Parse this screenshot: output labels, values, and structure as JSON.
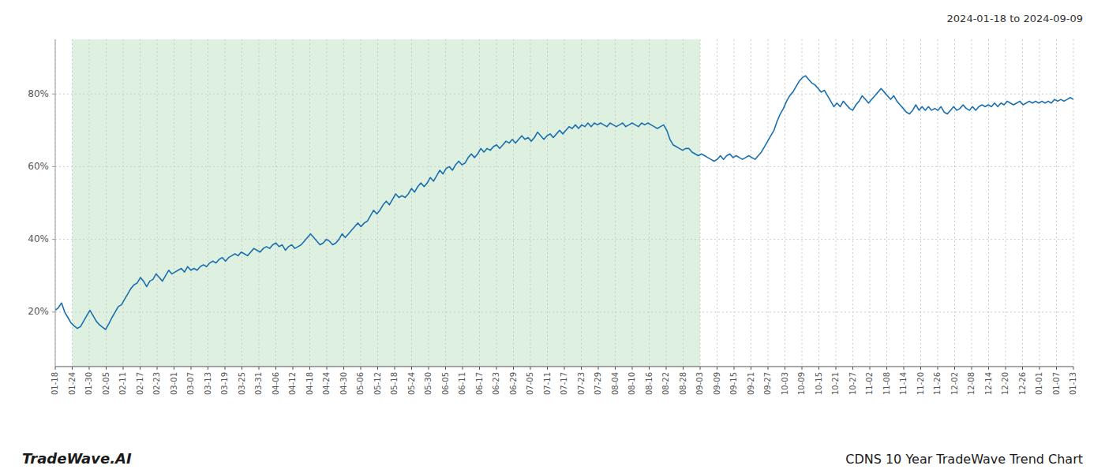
{
  "chart_data": {
    "type": "line",
    "title": "CDNS 10 Year TradeWave Trend Chart",
    "subtitle": "2024-01-18 to 2024-09-09",
    "annotations": [
      {
        "text": "TradeWave.AI"
      }
    ],
    "color": "#1a6faf",
    "grid": true,
    "xlim": [
      0,
      323
    ],
    "xticks": [
      {
        "value": 0,
        "label": "01-18"
      },
      {
        "value": 5.383333333333334,
        "label": "01-24"
      },
      {
        "value": 10.766666666666667,
        "label": "01-30"
      },
      {
        "value": 16.15,
        "label": "02-05"
      },
      {
        "value": 21.533333333333335,
        "label": "02-11"
      },
      {
        "value": 26.916666666666668,
        "label": "02-17"
      },
      {
        "value": 32.3,
        "label": "02-23"
      },
      {
        "value": 37.68333333333333,
        "label": "03-01"
      },
      {
        "value": 43.06666666666667,
        "label": "03-07"
      },
      {
        "value": 48.45,
        "label": "03-13"
      },
      {
        "value": 53.833333333333336,
        "label": "03-19"
      },
      {
        "value": 59.21666666666667,
        "label": "03-25"
      },
      {
        "value": 64.6,
        "label": "03-31"
      },
      {
        "value": 69.98333333333333,
        "label": "04-06"
      },
      {
        "value": 75.36666666666667,
        "label": "04-12"
      },
      {
        "value": 80.75,
        "label": "04-18"
      },
      {
        "value": 86.13333333333334,
        "label": "04-24"
      },
      {
        "value": 91.51666666666667,
        "label": "04-30"
      },
      {
        "value": 96.9,
        "label": "05-06"
      },
      {
        "value": 102.28333333333333,
        "label": "05-12"
      },
      {
        "value": 107.66666666666667,
        "label": "05-18"
      },
      {
        "value": 113.05,
        "label": "05-24"
      },
      {
        "value": 118.43333333333334,
        "label": "05-30"
      },
      {
        "value": 123.81666666666666,
        "label": "06-05"
      },
      {
        "value": 129.2,
        "label": "06-11"
      },
      {
        "value": 134.58333333333334,
        "label": "06-17"
      },
      {
        "value": 139.96666666666667,
        "label": "06-23"
      },
      {
        "value": 145.35,
        "label": "06-29"
      },
      {
        "value": 150.73333333333332,
        "label": "07-05"
      },
      {
        "value": 156.11666666666667,
        "label": "07-11"
      },
      {
        "value": 161.5,
        "label": "07-17"
      },
      {
        "value": 166.88333333333333,
        "label": "07-23"
      },
      {
        "value": 172.26666666666668,
        "label": "07-29"
      },
      {
        "value": 177.65,
        "label": "08-04"
      },
      {
        "value": 183.03333333333333,
        "label": "08-10"
      },
      {
        "value": 188.41666666666666,
        "label": "08-16"
      },
      {
        "value": 193.8,
        "label": "08-22"
      },
      {
        "value": 199.18333333333334,
        "label": "08-28"
      },
      {
        "value": 204.56666666666666,
        "label": "09-03"
      },
      {
        "value": 209.95,
        "label": "09-09"
      },
      {
        "value": 215.33333333333334,
        "label": "09-15"
      },
      {
        "value": 220.71666666666667,
        "label": "09-21"
      },
      {
        "value": 226.1,
        "label": "09-27"
      },
      {
        "value": 231.48333333333332,
        "label": "10-03"
      },
      {
        "value": 236.86666666666667,
        "label": "10-09"
      },
      {
        "value": 242.25,
        "label": "10-15"
      },
      {
        "value": 247.63333333333333,
        "label": "10-21"
      },
      {
        "value": 253.01666666666668,
        "label": "10-27"
      },
      {
        "value": 258.4,
        "label": "11-02"
      },
      {
        "value": 263.78333333333336,
        "label": "11-08"
      },
      {
        "value": 269.1666666666667,
        "label": "11-14"
      },
      {
        "value": 274.55,
        "label": "11-20"
      },
      {
        "value": 279.93333333333334,
        "label": "11-26"
      },
      {
        "value": 285.31666666666666,
        "label": "12-02"
      },
      {
        "value": 290.7,
        "label": "12-08"
      },
      {
        "value": 296.0833333333333,
        "label": "12-14"
      },
      {
        "value": 301.46666666666664,
        "label": "12-20"
      },
      {
        "value": 306.85,
        "label": "12-26"
      },
      {
        "value": 312.2333333333333,
        "label": "01-01"
      },
      {
        "value": 317.6166666666667,
        "label": "01-07"
      },
      {
        "value": 323,
        "label": "01-13"
      }
    ],
    "ylim": [
      5,
      95
    ],
    "yticks": [
      {
        "value": 20,
        "label": "20%"
      },
      {
        "value": 40,
        "label": "40%"
      },
      {
        "value": 60,
        "label": "60%"
      },
      {
        "value": 80,
        "label": "80%"
      }
    ],
    "span": {
      "start": 5.383333333333334,
      "end": 204.56666666666666,
      "color": "#c8e6c9"
    },
    "values": [
      20.5,
      21.2,
      22.5,
      20.0,
      18.5,
      17.0,
      16.2,
      15.5,
      16.0,
      17.5,
      19.0,
      20.5,
      19.0,
      17.5,
      16.5,
      15.8,
      15.2,
      16.8,
      18.5,
      20.0,
      21.5,
      22.0,
      23.5,
      25.0,
      26.5,
      27.5,
      28.0,
      29.5,
      28.5,
      27.0,
      28.5,
      29.0,
      30.5,
      29.5,
      28.5,
      30.0,
      31.5,
      30.5,
      31.0,
      31.5,
      32.0,
      31.0,
      32.5,
      31.5,
      32.0,
      31.5,
      32.5,
      33.0,
      32.5,
      33.5,
      34.0,
      33.5,
      34.5,
      35.0,
      34.0,
      35.0,
      35.5,
      36.0,
      35.5,
      36.5,
      36.0,
      35.5,
      36.5,
      37.5,
      37.0,
      36.5,
      37.5,
      38.0,
      37.5,
      38.5,
      39.0,
      38.0,
      38.5,
      37.0,
      38.0,
      38.5,
      37.5,
      38.0,
      38.5,
      39.5,
      40.5,
      41.5,
      40.5,
      39.5,
      38.5,
      39.0,
      40.0,
      39.5,
      38.5,
      39.0,
      40.0,
      41.5,
      40.5,
      41.5,
      42.5,
      43.5,
      44.5,
      43.5,
      44.5,
      45.0,
      46.5,
      48.0,
      47.0,
      48.0,
      49.5,
      50.5,
      49.5,
      51.0,
      52.5,
      51.5,
      52.0,
      51.5,
      52.5,
      54.0,
      53.0,
      54.5,
      55.5,
      54.5,
      55.5,
      57.0,
      56.0,
      57.5,
      59.0,
      58.0,
      59.5,
      60.0,
      59.0,
      60.5,
      61.5,
      60.5,
      61.0,
      62.5,
      63.5,
      62.5,
      63.5,
      65.0,
      64.0,
      65.0,
      64.5,
      65.5,
      66.0,
      65.0,
      66.0,
      67.0,
      66.5,
      67.5,
      66.5,
      67.5,
      68.5,
      67.5,
      68.0,
      67.0,
      68.0,
      69.5,
      68.5,
      67.5,
      68.5,
      69.0,
      68.0,
      69.0,
      70.0,
      69.0,
      70.0,
      71.0,
      70.5,
      71.5,
      70.5,
      71.5,
      71.0,
      72.0,
      71.0,
      72.0,
      71.5,
      72.0,
      71.5,
      71.0,
      72.0,
      71.5,
      71.0,
      71.5,
      72.0,
      71.0,
      71.5,
      72.0,
      71.5,
      71.0,
      72.0,
      71.5,
      72.0,
      71.5,
      71.0,
      70.5,
      71.0,
      71.5,
      70.0,
      67.5,
      66.0,
      65.5,
      65.0,
      64.5,
      65.0,
      65.0,
      64.0,
      63.5,
      63.0,
      63.5,
      63.0,
      62.5,
      62.0,
      61.5,
      62.0,
      63.0,
      62.0,
      63.0,
      63.5,
      62.5,
      63.0,
      62.5,
      62.0,
      62.5,
      63.0,
      62.5,
      62.0,
      63.0,
      64.0,
      65.5,
      67.0,
      68.5,
      70.0,
      72.5,
      74.5,
      76.0,
      78.0,
      79.5,
      80.5,
      82.0,
      83.5,
      84.5,
      85.0,
      84.0,
      83.0,
      82.5,
      81.5,
      80.5,
      81.0,
      79.5,
      78.0,
      76.5,
      77.5,
      76.5,
      78.0,
      77.0,
      76.0,
      75.5,
      77.0,
      78.0,
      79.5,
      78.5,
      77.5,
      78.5,
      79.5,
      80.5,
      81.5,
      80.5,
      79.5,
      78.5,
      79.5,
      78.0,
      77.0,
      76.0,
      75.0,
      74.5,
      75.5,
      77.0,
      75.5,
      76.5,
      75.5,
      76.5,
      75.5,
      76.0,
      75.5,
      76.5,
      75.0,
      74.5,
      75.5,
      76.5,
      75.5,
      76.0,
      77.0,
      76.0,
      75.5,
      76.5,
      75.5,
      76.5,
      77.0,
      76.5,
      77.0,
      76.5,
      77.5,
      76.5,
      77.5,
      77.0,
      78.0,
      77.5,
      77.0,
      77.5,
      78.0,
      77.0,
      77.5,
      78.0,
      77.5,
      78.0,
      77.5,
      78.0,
      77.5,
      78.0,
      77.5,
      78.5,
      78.0,
      78.5,
      78.0,
      78.5,
      79.0,
      78.5
    ]
  }
}
